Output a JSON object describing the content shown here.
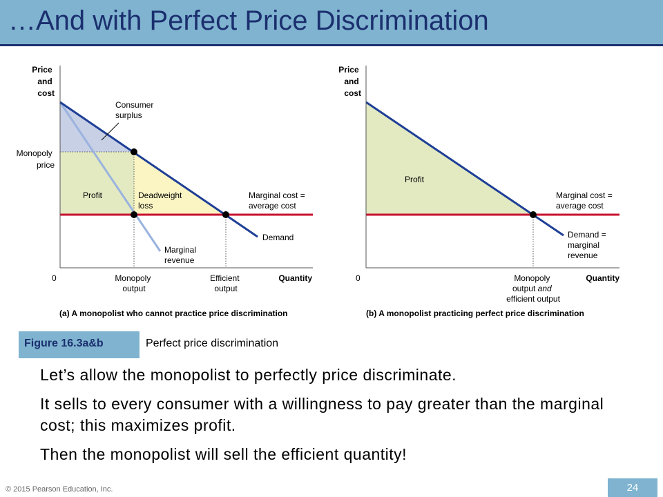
{
  "slide": {
    "title": "…And with Perfect Price Discrimination",
    "copyright": "© 2015 Pearson Education, Inc.",
    "page_number": "24"
  },
  "figure": {
    "panel_a": {
      "axis_y": [
        "Price",
        "and",
        "cost"
      ],
      "origin": "0",
      "axis_x": "Quantity",
      "consumer_surplus": [
        "Consumer",
        "surplus"
      ],
      "monopoly_price": [
        "Monopoly",
        "price"
      ],
      "profit": "Profit",
      "deadweight_loss": [
        "Deadweight",
        "loss"
      ],
      "mc_label": [
        "Marginal cost =",
        "average cost"
      ],
      "demand": "Demand",
      "marginal_revenue": [
        "Marginal",
        "revenue"
      ],
      "monopoly_output": [
        "Monopoly",
        "output"
      ],
      "efficient_output": [
        "Efficient",
        "output"
      ],
      "caption": "(a) A monopolist who cannot practice price discrimination"
    },
    "panel_b": {
      "axis_y": [
        "Price",
        "and",
        "cost"
      ],
      "origin": "0",
      "axis_x": "Quantity",
      "profit": "Profit",
      "mc_label": [
        "Marginal cost =",
        "average cost"
      ],
      "demand_mr": [
        "Demand =",
        "marginal",
        "revenue"
      ],
      "output_line1": "Monopoly",
      "output_line2a": "output ",
      "output_line2b": "and",
      "output_line3": "efficient output",
      "caption": "(b) A monopolist practicing perfect price discrimination"
    },
    "colors": {
      "demand": "#1e3f96",
      "marginal_revenue": "#9ab3de",
      "marginal_cost": "#c8102e",
      "consumer_surplus": "#c8d0e6",
      "profit": "#e3eac2",
      "deadweight_loss": "#fbf5c4"
    }
  },
  "caption": {
    "number": "Figure 16.3a&b",
    "text": "Perfect price discrimination"
  },
  "body": {
    "p1": "Let’s allow the monopolist to perfectly price discriminate.",
    "p2": "It sells to every consumer with a willingness to pay greater than the marginal cost; this maximizes profit.",
    "p3": "Then the monopolist will sell the efficient quantity!"
  }
}
